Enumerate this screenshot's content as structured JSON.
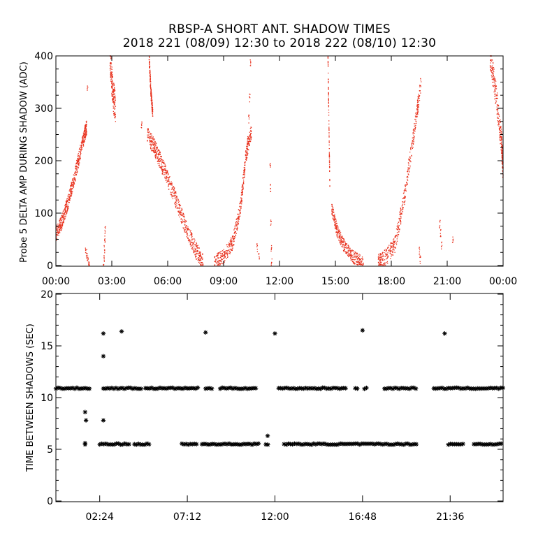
{
  "chart_data": [
    {
      "type": "scatter",
      "title": "RBSP-A SHORT ANT. SHADOW TIMES",
      "subtitle": "2018 221 (08/09) 12:30 to 2018 222 (08/10) 12:30",
      "xlabel": "",
      "ylabel": "Probe 5 DELTA AMP DURING SHADOW (ADC)",
      "xlim_hours": [
        0,
        24
      ],
      "ylim": [
        0,
        400
      ],
      "x_tick_labels": [
        "00:00",
        "03:00",
        "06:00",
        "09:00",
        "12:00",
        "15:00",
        "18:00",
        "21:00",
        "00:00"
      ],
      "x_tick_hours": [
        0,
        3,
        6,
        9,
        12,
        15,
        18,
        21,
        24
      ],
      "y_ticks": [
        0,
        100,
        200,
        300,
        400
      ],
      "y_tick_labels": [
        "0",
        "100",
        "200",
        "300",
        "400"
      ],
      "marker_color": "#e8321e",
      "series": [
        {
          "segments": [
            {
              "x": [
                0.0,
                0.3,
                0.6,
                0.9,
                1.2,
                1.5,
                1.65
              ],
              "y": [
                60,
                82,
                115,
                155,
                200,
                245,
                265
              ],
              "spread": 14
            },
            {
              "x": [
                4.9,
                5.3,
                5.6,
                6.0,
                6.5,
                7.0,
                7.5,
                7.9
              ],
              "y": [
                250,
                225,
                200,
                165,
                120,
                70,
                30,
                5
              ],
              "spread": 16
            },
            {
              "x": [
                8.5,
                9.0,
                9.5,
                9.9,
                10.2,
                10.5
              ],
              "y": [
                5,
                18,
                45,
                110,
                210,
                260
              ],
              "spread": 14
            },
            {
              "x": [
                14.8,
                15.1,
                15.5,
                16.0,
                16.5
              ],
              "y": [
                110,
                65,
                35,
                15,
                5
              ],
              "spread": 12
            },
            {
              "x": [
                17.3,
                17.7,
                18.2,
                18.7,
                19.2,
                19.6
              ],
              "y": [
                5,
                15,
                40,
                130,
                250,
                350
              ],
              "spread": 16
            },
            {
              "x": [
                23.3,
                23.6,
                23.9,
                24.0
              ],
              "y": [
                400,
                330,
                240,
                180
              ],
              "spread": 25
            },
            {
              "x": [
                5.0,
                5.1,
                5.2
              ],
              "y": [
                400,
                330,
                290
              ],
              "spread": 10
            },
            {
              "x": [
                2.9,
                3.05,
                3.2
              ],
              "y": [
                400,
                330,
                300
              ],
              "spread": 30
            },
            {
              "x": [
                14.6,
                14.7
              ],
              "y": [
                400,
                150
              ],
              "spread": 4
            }
          ],
          "points": [
            [
              1.6,
              30
            ],
            [
              1.65,
              22
            ],
            [
              1.7,
              15
            ],
            [
              1.75,
              8
            ],
            [
              1.8,
              2
            ],
            [
              1.7,
              335
            ],
            [
              2.65,
              70
            ],
            [
              2.62,
              50
            ],
            [
              2.6,
              30
            ],
            [
              2.58,
              12
            ],
            [
              2.56,
              2
            ],
            [
              10.3,
              240
            ],
            [
              10.35,
              280
            ],
            [
              10.4,
              320
            ],
            [
              10.45,
              385
            ],
            [
              10.8,
              35
            ],
            [
              10.9,
              18
            ],
            [
              11.5,
              190
            ],
            [
              11.52,
              150
            ],
            [
              11.54,
              80
            ],
            [
              11.56,
              30
            ],
            [
              11.58,
              5
            ],
            [
              19.5,
              30
            ],
            [
              19.55,
              10
            ],
            [
              20.6,
              80
            ],
            [
              20.65,
              60
            ],
            [
              20.7,
              40
            ],
            [
              21.3,
              48
            ],
            [
              4.6,
              270
            ]
          ]
        }
      ]
    },
    {
      "type": "scatter",
      "xlabel": "",
      "ylabel": "TIME BETWEEN SHADOWS (SEC)",
      "xlim_hours": [
        0,
        24.5
      ],
      "ylim": [
        0,
        20
      ],
      "x_tick_labels": [
        "02:24",
        "07:12",
        "12:00",
        "16:48",
        "21:36"
      ],
      "x_tick_hours": [
        2.4,
        7.2,
        12.0,
        16.8,
        21.6
      ],
      "y_ticks": [
        0,
        5,
        10,
        15,
        20
      ],
      "y_tick_labels": [
        "0",
        "5",
        "10",
        "15",
        "20"
      ],
      "marker": "asterisk",
      "marker_color": "#000000",
      "bands": [
        {
          "y": 10.9,
          "ranges": [
            [
              0,
              1.9
            ],
            [
              2.6,
              4.7
            ],
            [
              4.9,
              7.8
            ],
            [
              8.2,
              8.6
            ],
            [
              9.0,
              11.0
            ],
            [
              12.2,
              15.9
            ],
            [
              16.4,
              16.6
            ],
            [
              16.9,
              17.1
            ],
            [
              18.0,
              19.8
            ],
            [
              20.7,
              24.5
            ]
          ]
        },
        {
          "y": 5.5,
          "ranges": [
            [
              1.6,
              1.7
            ],
            [
              2.4,
              4.1
            ],
            [
              4.3,
              5.2
            ],
            [
              6.9,
              7.8
            ],
            [
              8.0,
              11.2
            ],
            [
              11.5,
              11.7
            ],
            [
              12.5,
              13.1
            ],
            [
              13.2,
              19.8
            ],
            [
              21.5,
              22.4
            ],
            [
              22.9,
              24.5
            ]
          ]
        }
      ],
      "points": [
        [
          1.6,
          8.6
        ],
        [
          1.65,
          7.8
        ],
        [
          1.6,
          5.6
        ],
        [
          2.6,
          16.2
        ],
        [
          2.6,
          14.0
        ],
        [
          2.6,
          7.8
        ],
        [
          3.6,
          16.4
        ],
        [
          8.2,
          16.3
        ],
        [
          11.6,
          6.3
        ],
        [
          12.0,
          16.2
        ],
        [
          16.8,
          16.5
        ],
        [
          21.3,
          16.2
        ]
      ]
    }
  ]
}
